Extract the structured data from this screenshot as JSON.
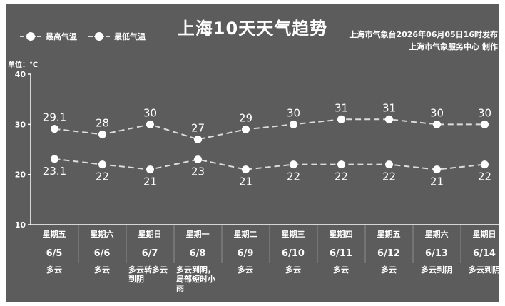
{
  "title": "上海10天天气趋势",
  "source_line1": "上海市气象台2026年06月05日16时发布",
  "source_line2": "上海市气象服务中心 制作",
  "unit_label": "单位：℃",
  "legend": {
    "high": "最高气温",
    "low": "最低气温"
  },
  "colors": {
    "background": "#5c5c5c",
    "line": "#dcdcdc",
    "marker": "#ffffff",
    "text": "#ffffff"
  },
  "chart_data": {
    "type": "line",
    "categories": [
      "6/5",
      "6/6",
      "6/7",
      "6/8",
      "6/9",
      "6/10",
      "6/11",
      "6/12",
      "6/13",
      "6/14"
    ],
    "weekdays": [
      "星期五",
      "星期六",
      "星期日",
      "星期一",
      "星期二",
      "星期三",
      "星期四",
      "星期五",
      "星期六",
      "星期日"
    ],
    "weather": [
      "多云",
      "多云",
      "多云转多云到阴",
      "多云到阴，局部短时小雨",
      "多云",
      "多云",
      "多云",
      "多云",
      "多云到阴",
      "多云到阴"
    ],
    "series": [
      {
        "name": "最高气温",
        "values": [
          29.1,
          28,
          30,
          27,
          29,
          30,
          31,
          31,
          30,
          30
        ],
        "labels": [
          "29.1",
          "28",
          "30",
          "27",
          "29",
          "30",
          "31",
          "31",
          "30",
          "30"
        ]
      },
      {
        "name": "最低气温",
        "values": [
          23.1,
          22,
          21,
          23,
          21,
          22,
          22,
          22,
          21,
          22
        ],
        "labels": [
          "23.1",
          "22",
          "21",
          "23",
          "21",
          "22",
          "22",
          "22",
          "21",
          "22"
        ]
      }
    ],
    "ylim": [
      10,
      40
    ],
    "yticks": [
      "10",
      "20",
      "30",
      "40"
    ],
    "ylabel": "单位：℃",
    "grid": false,
    "legend_position": "top-left"
  }
}
